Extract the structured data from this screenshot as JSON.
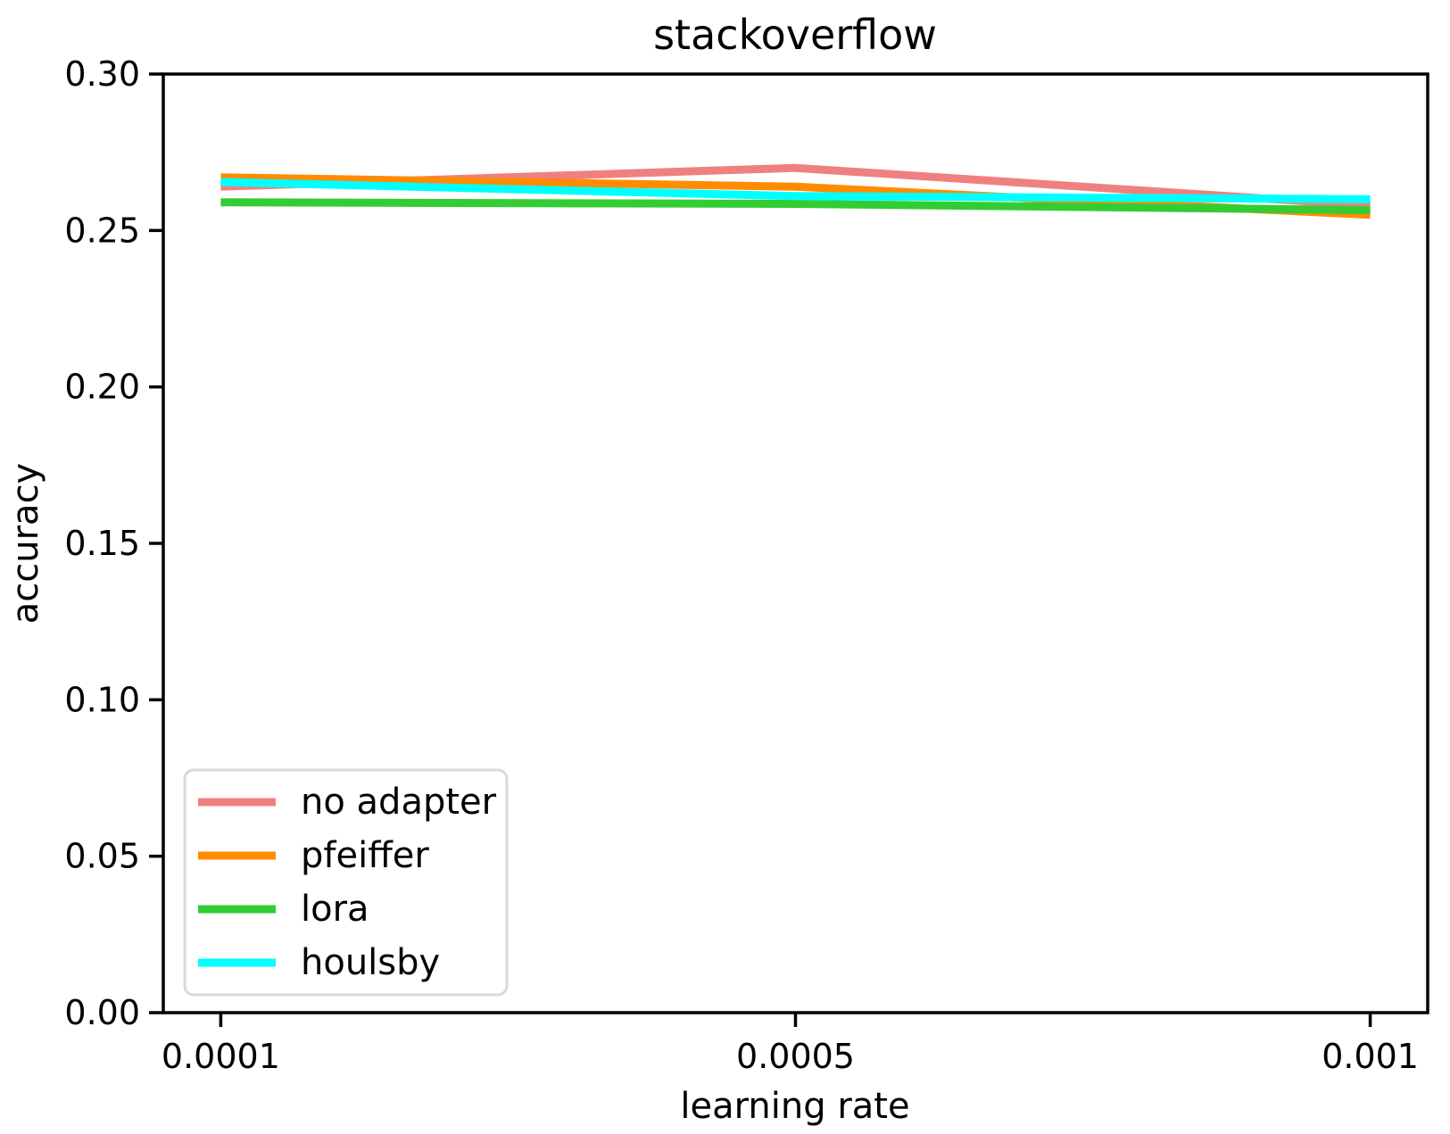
{
  "chart_data": {
    "type": "line",
    "title": "stackoverflow",
    "xlabel": "learning rate",
    "ylabel": "accuracy",
    "categories": [
      "0.0001",
      "0.0005",
      "0.001"
    ],
    "x_values": [
      0.0001,
      0.0005,
      0.001
    ],
    "x_scale": "categorical-evenly-spaced",
    "series": [
      {
        "name": "no adapter",
        "color": "#f08080",
        "values": [
          0.264,
          0.27,
          0.258
        ]
      },
      {
        "name": "pfeiffer",
        "color": "#ff8c00",
        "values": [
          0.267,
          0.264,
          0.255
        ]
      },
      {
        "name": "lora",
        "color": "#32cd32",
        "values": [
          0.259,
          0.2585,
          0.2565
        ]
      },
      {
        "name": "houlsby",
        "color": "#00ffff",
        "values": [
          0.2655,
          0.261,
          0.26
        ]
      }
    ],
    "ylim": [
      0.0,
      0.3
    ],
    "yticks": [
      "0.00",
      "0.05",
      "0.10",
      "0.15",
      "0.20",
      "0.25",
      "0.30"
    ],
    "grid": false,
    "legend_position": "lower left",
    "colors": {
      "axes": "#000000",
      "background": "#ffffff",
      "legend_border": "#d9d9d9"
    }
  }
}
